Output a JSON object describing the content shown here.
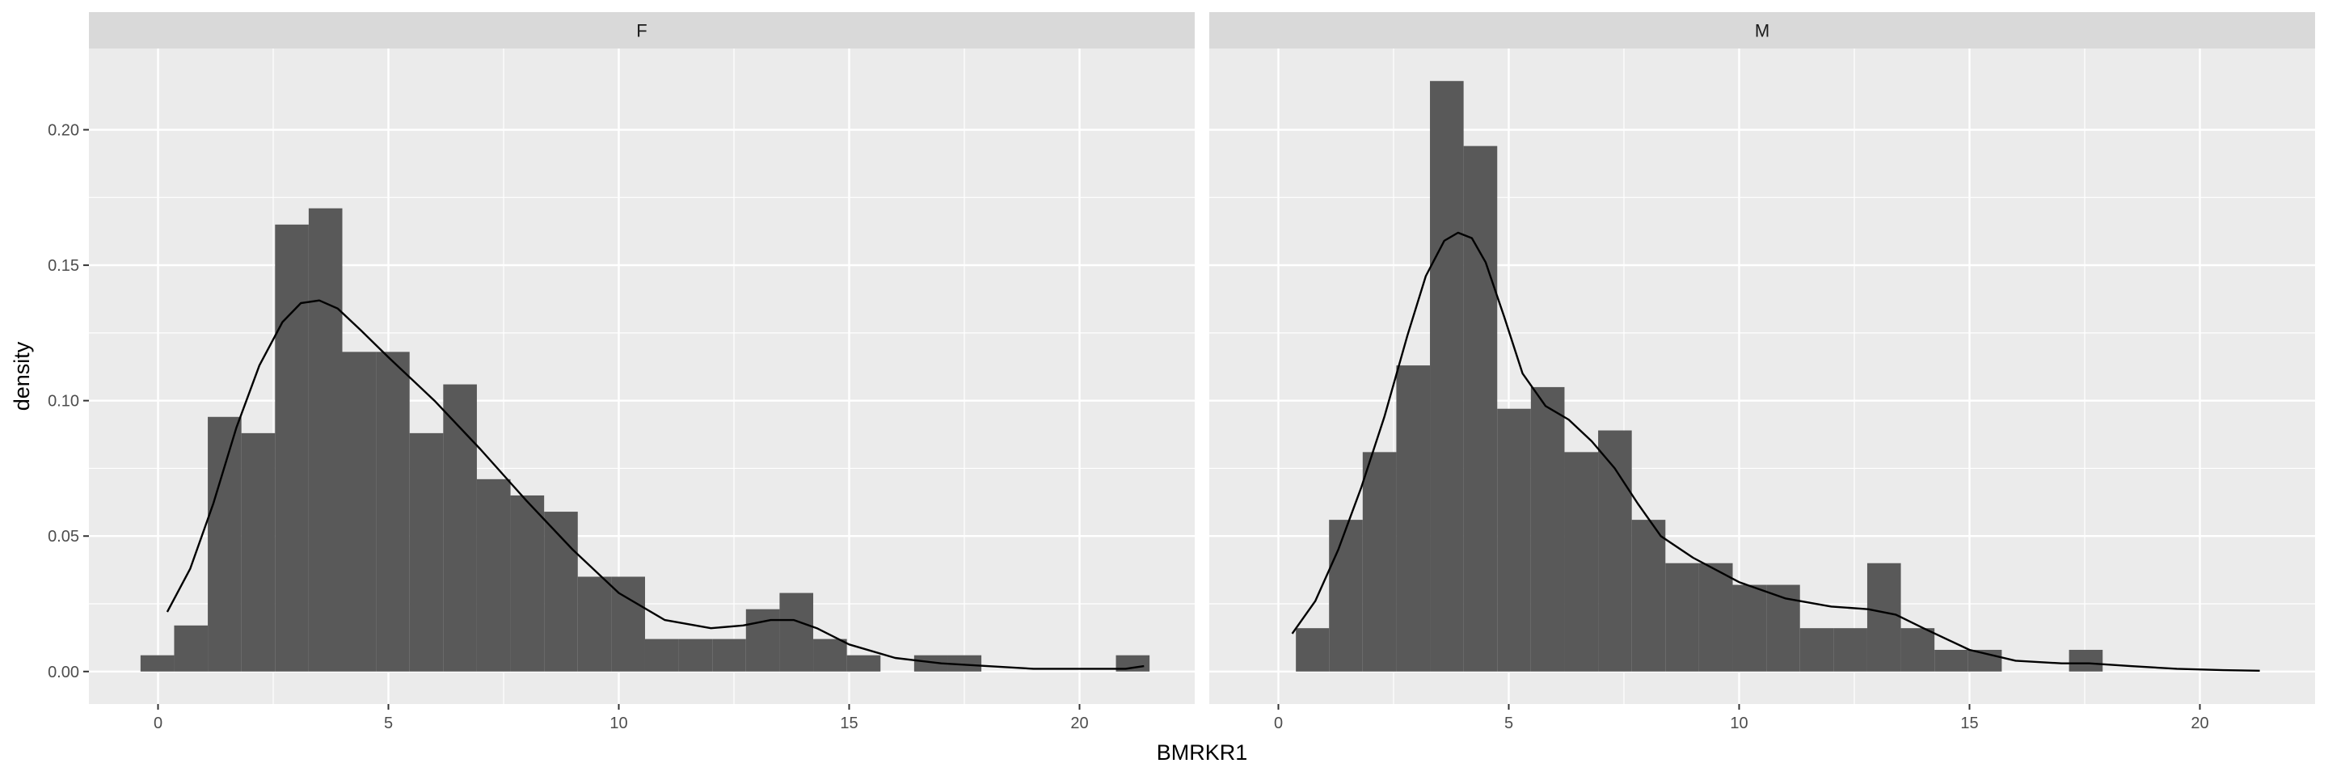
{
  "chart_data": {
    "type": "bar",
    "subtype": "faceted-histogram-with-density",
    "xlabel": "BMRKR1",
    "ylabel": "density",
    "xlim": [
      -1.5,
      22.5
    ],
    "ylim": [
      -0.012,
      0.23
    ],
    "x_ticks": [
      0,
      5,
      10,
      15,
      20
    ],
    "y_ticks": [
      0.0,
      0.05,
      0.1,
      0.15,
      0.2
    ],
    "y_tick_labels": [
      "0.00",
      "0.05",
      "0.10",
      "0.15",
      "0.20"
    ],
    "grid": true,
    "bar_color": "#595959",
    "line_color": "#000000",
    "panel_bg": "#ebebeb",
    "strip_bg": "#d9d9d9",
    "grid_color": "#ffffff",
    "facets": [
      {
        "label": "F",
        "bins": [
          {
            "x0": -0.38,
            "x1": 0.35,
            "density": 0.006
          },
          {
            "x0": 0.35,
            "x1": 1.08,
            "density": 0.017
          },
          {
            "x0": 1.08,
            "x1": 1.81,
            "density": 0.094
          },
          {
            "x0": 1.81,
            "x1": 2.54,
            "density": 0.088
          },
          {
            "x0": 2.54,
            "x1": 3.27,
            "density": 0.165
          },
          {
            "x0": 3.27,
            "x1": 4.0,
            "density": 0.171
          },
          {
            "x0": 4.0,
            "x1": 4.73,
            "density": 0.118
          },
          {
            "x0": 4.73,
            "x1": 5.46,
            "density": 0.118
          },
          {
            "x0": 5.46,
            "x1": 6.19,
            "density": 0.088
          },
          {
            "x0": 6.19,
            "x1": 6.92,
            "density": 0.106
          },
          {
            "x0": 6.92,
            "x1": 7.65,
            "density": 0.071
          },
          {
            "x0": 7.65,
            "x1": 8.38,
            "density": 0.065
          },
          {
            "x0": 8.38,
            "x1": 9.11,
            "density": 0.059
          },
          {
            "x0": 9.11,
            "x1": 9.84,
            "density": 0.035
          },
          {
            "x0": 9.84,
            "x1": 10.57,
            "density": 0.035
          },
          {
            "x0": 10.57,
            "x1": 11.3,
            "density": 0.012
          },
          {
            "x0": 11.3,
            "x1": 12.03,
            "density": 0.012
          },
          {
            "x0": 12.03,
            "x1": 12.76,
            "density": 0.012
          },
          {
            "x0": 12.76,
            "x1": 13.49,
            "density": 0.023
          },
          {
            "x0": 13.49,
            "x1": 14.22,
            "density": 0.029
          },
          {
            "x0": 14.22,
            "x1": 14.95,
            "density": 0.012
          },
          {
            "x0": 14.95,
            "x1": 15.68,
            "density": 0.006
          },
          {
            "x0": 16.41,
            "x1": 17.14,
            "density": 0.006
          },
          {
            "x0": 17.14,
            "x1": 17.87,
            "density": 0.006
          },
          {
            "x0": 20.79,
            "x1": 21.52,
            "density": 0.006
          }
        ],
        "density_curve": {
          "x": [
            0.2,
            0.7,
            1.2,
            1.7,
            2.2,
            2.7,
            3.1,
            3.5,
            3.9,
            4.4,
            5.0,
            6.0,
            7.0,
            8.0,
            9.0,
            10.0,
            11.0,
            12.0,
            12.7,
            13.3,
            13.8,
            14.3,
            15.0,
            16.0,
            17.0,
            18.0,
            19.0,
            20.0,
            21.0,
            21.4
          ],
          "y": [
            0.022,
            0.038,
            0.062,
            0.09,
            0.113,
            0.129,
            0.136,
            0.137,
            0.134,
            0.126,
            0.116,
            0.1,
            0.082,
            0.063,
            0.045,
            0.029,
            0.019,
            0.016,
            0.017,
            0.019,
            0.019,
            0.016,
            0.01,
            0.005,
            0.003,
            0.002,
            0.001,
            0.001,
            0.001,
            0.002
          ]
        }
      },
      {
        "label": "M",
        "bins": [
          {
            "x0": 0.38,
            "x1": 1.1,
            "density": 0.016
          },
          {
            "x0": 1.1,
            "x1": 1.83,
            "density": 0.056
          },
          {
            "x0": 1.83,
            "x1": 2.56,
            "density": 0.081
          },
          {
            "x0": 2.56,
            "x1": 3.29,
            "density": 0.113
          },
          {
            "x0": 3.29,
            "x1": 4.02,
            "density": 0.218
          },
          {
            "x0": 4.02,
            "x1": 4.75,
            "density": 0.194
          },
          {
            "x0": 4.75,
            "x1": 5.48,
            "density": 0.097
          },
          {
            "x0": 5.48,
            "x1": 6.21,
            "density": 0.105
          },
          {
            "x0": 6.21,
            "x1": 6.94,
            "density": 0.081
          },
          {
            "x0": 6.94,
            "x1": 7.67,
            "density": 0.089
          },
          {
            "x0": 7.67,
            "x1": 8.4,
            "density": 0.056
          },
          {
            "x0": 8.4,
            "x1": 9.13,
            "density": 0.04
          },
          {
            "x0": 9.13,
            "x1": 9.86,
            "density": 0.04
          },
          {
            "x0": 9.86,
            "x1": 10.59,
            "density": 0.032
          },
          {
            "x0": 10.59,
            "x1": 11.32,
            "density": 0.032
          },
          {
            "x0": 11.32,
            "x1": 12.05,
            "density": 0.016
          },
          {
            "x0": 12.05,
            "x1": 12.78,
            "density": 0.016
          },
          {
            "x0": 12.78,
            "x1": 13.51,
            "density": 0.04
          },
          {
            "x0": 13.51,
            "x1": 14.24,
            "density": 0.016
          },
          {
            "x0": 14.24,
            "x1": 14.97,
            "density": 0.008
          },
          {
            "x0": 14.97,
            "x1": 15.7,
            "density": 0.008
          },
          {
            "x0": 17.16,
            "x1": 17.89,
            "density": 0.008
          }
        ],
        "density_curve": {
          "x": [
            0.3,
            0.8,
            1.3,
            1.8,
            2.3,
            2.8,
            3.2,
            3.6,
            3.9,
            4.2,
            4.5,
            4.9,
            5.3,
            5.8,
            6.3,
            6.8,
            7.3,
            7.8,
            8.3,
            9.0,
            10.0,
            11.0,
            12.0,
            12.8,
            13.4,
            14.0,
            15.0,
            16.0,
            17.0,
            17.6,
            18.5,
            19.5,
            20.5,
            21.3
          ],
          "y": [
            0.014,
            0.026,
            0.045,
            0.068,
            0.094,
            0.124,
            0.146,
            0.159,
            0.162,
            0.16,
            0.151,
            0.131,
            0.11,
            0.098,
            0.093,
            0.085,
            0.075,
            0.062,
            0.05,
            0.042,
            0.033,
            0.027,
            0.024,
            0.023,
            0.021,
            0.016,
            0.008,
            0.004,
            0.003,
            0.003,
            0.002,
            0.001,
            0.0005,
            0.0003
          ]
        }
      }
    ]
  }
}
